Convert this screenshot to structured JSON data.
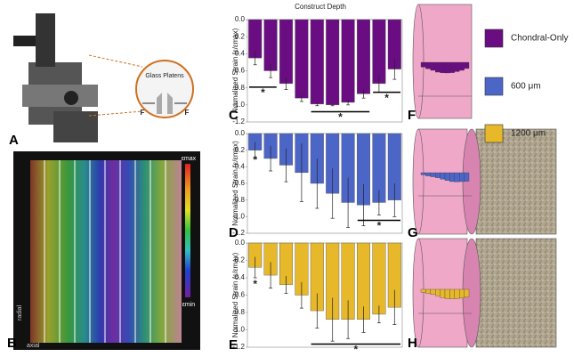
{
  "header": {
    "title": "Construct Depth"
  },
  "panel_labels": [
    "A",
    "B",
    "C",
    "D",
    "E",
    "F",
    "G",
    "H"
  ],
  "photo_labels": {
    "platens": "Glass Platens",
    "force_left": "F",
    "force_right": "F"
  },
  "strain_map": {
    "max": "εmax",
    "min": "εmin",
    "radial": "radial",
    "axial": "axial"
  },
  "chart_data": [
    {
      "type": "bar",
      "y_label": "Normalized Strain (ε/εmax)",
      "categories": [
        null,
        null,
        null,
        null,
        null,
        null,
        null,
        null,
        null,
        null
      ],
      "series": [
        {
          "name": "Chondral-Only",
          "color": "#6a0d83",
          "values": [
            -0.45,
            -0.6,
            -0.75,
            -0.92,
            -0.99,
            -1.0,
            -0.97,
            -0.87,
            -0.75,
            -0.58
          ],
          "errors": [
            0.08,
            0.08,
            0.07,
            0.04,
            0.02,
            0.01,
            0.03,
            0.05,
            0.1,
            0.12
          ]
        }
      ],
      "ylim": [
        0,
        -1.2
      ],
      "yticks": [
        {
          "value": 0,
          "label": "0.0"
        },
        -0.2,
        -0.4,
        -0.6,
        -0.8,
        {
          "value": -1,
          "label": "-1.0"
        },
        -1.2
      ],
      "annotations": [
        "*",
        "*",
        "*"
      ]
    },
    {
      "type": "bar",
      "y_label": "Normalized Strain (ε/εmax)",
      "categories": [
        null,
        null,
        null,
        null,
        null,
        null,
        null,
        null,
        null,
        null
      ],
      "series": [
        {
          "name": "600 μm",
          "color": "#4c66c8",
          "values": [
            -0.2,
            -0.3,
            -0.38,
            -0.47,
            -0.6,
            -0.72,
            -0.83,
            -0.86,
            -0.83,
            -0.8
          ],
          "errors": [
            0.1,
            0.15,
            0.2,
            0.35,
            0.3,
            0.3,
            0.3,
            0.25,
            0.15,
            0.2
          ]
        }
      ],
      "ylim": [
        0,
        -1.2
      ],
      "yticks": [
        {
          "value": 0,
          "label": "0.0"
        },
        -0.2,
        -0.4,
        -0.6,
        -0.8,
        {
          "value": -1,
          "label": "-1.0"
        },
        -1.2
      ],
      "annotations": [
        "*",
        "*"
      ]
    },
    {
      "type": "bar",
      "y_label": "Normalized Strain (ε/εmax)",
      "categories": [
        null,
        null,
        null,
        null,
        null,
        null,
        null,
        null,
        null,
        null
      ],
      "series": [
        {
          "name": "1200 μm",
          "color": "#e6b82a",
          "values": [
            -0.28,
            -0.37,
            -0.48,
            -0.6,
            -0.78,
            -0.88,
            -0.88,
            -0.88,
            -0.82,
            -0.74
          ],
          "errors": [
            0.12,
            0.15,
            0.1,
            0.15,
            0.2,
            0.25,
            0.22,
            0.15,
            0.1,
            0.2
          ]
        }
      ],
      "ylim": [
        0,
        -1.2
      ],
      "yticks": [
        {
          "value": 0,
          "label": "0.0"
        },
        -0.2,
        -0.4,
        -0.6,
        -0.8,
        {
          "value": -1,
          "label": "-1.0"
        },
        -1.2
      ],
      "annotations": [
        "*",
        "*"
      ]
    }
  ]
}
